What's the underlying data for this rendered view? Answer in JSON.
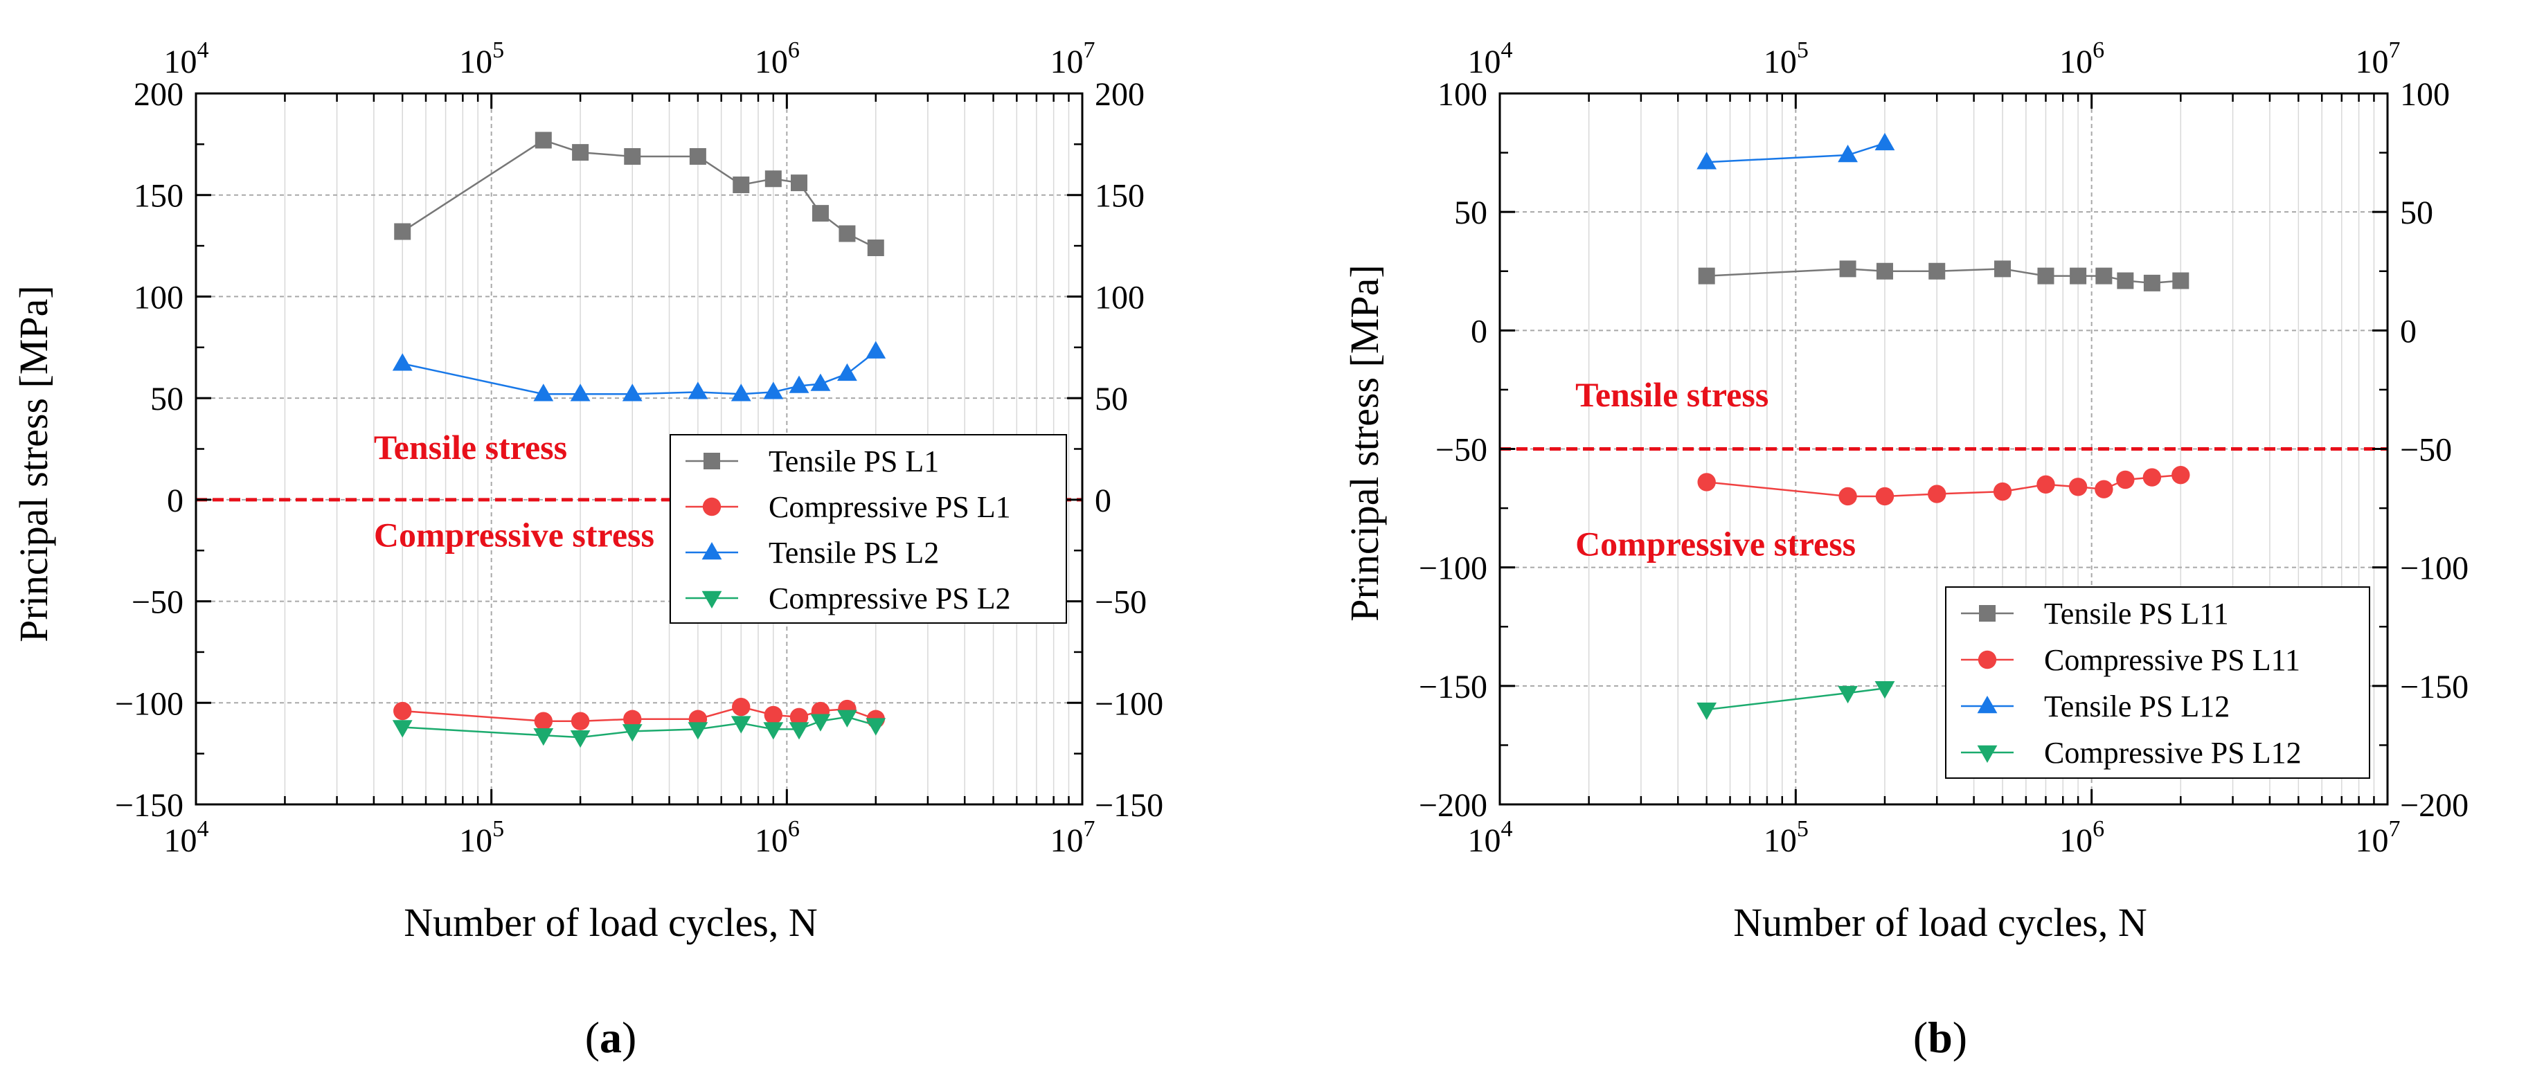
{
  "figure": {
    "labels": [
      {
        "open": "(",
        "letter": "a",
        "close": ")"
      },
      {
        "open": "(",
        "letter": "b",
        "close": ")"
      }
    ]
  },
  "colors": {
    "tensile_l1": "#777777",
    "compressive_l1": "#f04141",
    "tensile_l2": "#1878e8",
    "compressive_l2": "#1bab6e",
    "reference_line": "#e8101a",
    "annotation": "#e8101a"
  },
  "chart_data": [
    {
      "type": "scatter",
      "panel": "a",
      "title": "",
      "xlabel": "Number of load cycles, N",
      "ylabel": "Principal stress [MPa]",
      "x_scale": "log",
      "xlim": [
        10000,
        10000000
      ],
      "ylim": [
        -150,
        200
      ],
      "y_ticks": [
        -150,
        -100,
        -50,
        0,
        50,
        100,
        150,
        200
      ],
      "y_tick_labels": [
        "−150",
        "−100",
        "−50",
        "0",
        "50",
        "100",
        "150",
        "200"
      ],
      "x_ticks": [
        {
          "value": 10000,
          "base": "10",
          "exp": "4"
        },
        {
          "value": 100000,
          "base": "10",
          "exp": "5"
        },
        {
          "value": 1000000,
          "base": "10",
          "exp": "6"
        },
        {
          "value": 10000000,
          "base": "10",
          "exp": "7"
        }
      ],
      "grid": true,
      "legend_position": "center-right",
      "reference_line": {
        "y": 0,
        "style": "dashed"
      },
      "annotations": [
        {
          "text": "Tensile stress",
          "x": 40000,
          "y": 20
        },
        {
          "text": "Compressive stress",
          "x": 40000,
          "y": -23
        }
      ],
      "series": [
        {
          "name": "Tensile PS L1",
          "marker": "square",
          "color_key": "tensile_l1",
          "x": [
            50000,
            150000,
            200000,
            300000,
            500000,
            700000,
            900000,
            1100000,
            1300000,
            1600000,
            2000000
          ],
          "y": [
            132,
            177,
            171,
            169,
            169,
            155,
            158,
            156,
            141,
            131,
            124
          ]
        },
        {
          "name": "Compressive PS L1",
          "marker": "circle",
          "color_key": "compressive_l1",
          "x": [
            50000,
            150000,
            200000,
            300000,
            500000,
            700000,
            900000,
            1100000,
            1300000,
            1600000,
            2000000
          ],
          "y": [
            -104,
            -109,
            -109,
            -108,
            -108,
            -102,
            -106,
            -107,
            -104,
            -103,
            -108
          ]
        },
        {
          "name": "Tensile PS L2",
          "marker": "triangle-up",
          "color_key": "tensile_l2",
          "x": [
            50000,
            150000,
            200000,
            300000,
            500000,
            700000,
            900000,
            1100000,
            1300000,
            1600000,
            2000000
          ],
          "y": [
            67,
            52,
            52,
            52,
            53,
            52,
            53,
            56,
            57,
            62,
            73
          ]
        },
        {
          "name": "Compressive PS L2",
          "marker": "triangle-down",
          "color_key": "compressive_l2",
          "x": [
            50000,
            150000,
            200000,
            300000,
            500000,
            700000,
            900000,
            1100000,
            1300000,
            1600000,
            2000000
          ],
          "y": [
            -112,
            -116,
            -117,
            -114,
            -113,
            -110,
            -113,
            -113,
            -109,
            -107,
            -111
          ]
        }
      ]
    },
    {
      "type": "scatter",
      "panel": "b",
      "title": "",
      "xlabel": "Number of load cycles, N",
      "ylabel": "Principal stress [MPa]",
      "x_scale": "log",
      "xlim": [
        10000,
        10000000
      ],
      "ylim": [
        -200,
        100
      ],
      "y_ticks": [
        -200,
        -150,
        -100,
        -50,
        0,
        50,
        100
      ],
      "y_tick_labels": [
        "−200",
        "−150",
        "−100",
        "−50",
        "0",
        "50",
        "100"
      ],
      "x_ticks": [
        {
          "value": 10000,
          "base": "10",
          "exp": "4"
        },
        {
          "value": 100000,
          "base": "10",
          "exp": "5"
        },
        {
          "value": 1000000,
          "base": "10",
          "exp": "6"
        },
        {
          "value": 10000000,
          "base": "10",
          "exp": "7"
        }
      ],
      "grid": true,
      "legend_position": "bottom-right",
      "reference_line": {
        "y": -50,
        "style": "dashed"
      },
      "annotations": [
        {
          "text": "Tensile stress",
          "x": 18000,
          "y": -32
        },
        {
          "text": "Compressive stress",
          "x": 18000,
          "y": -95
        }
      ],
      "series": [
        {
          "name": "Tensile PS L11",
          "marker": "square",
          "color_key": "tensile_l1",
          "x": [
            50000,
            150000,
            200000,
            300000,
            500000,
            700000,
            900000,
            1100000,
            1300000,
            1600000,
            2000000
          ],
          "y": [
            23,
            26,
            25,
            25,
            26,
            23,
            23,
            23,
            21,
            20,
            21
          ]
        },
        {
          "name": "Compressive PS L11",
          "marker": "circle",
          "color_key": "compressive_l1",
          "x": [
            50000,
            150000,
            200000,
            300000,
            500000,
            700000,
            900000,
            1100000,
            1300000,
            1600000,
            2000000
          ],
          "y": [
            -64,
            -70,
            -70,
            -69,
            -68,
            -65,
            -66,
            -67,
            -63,
            -62,
            -61
          ]
        },
        {
          "name": "Tensile PS L12",
          "marker": "triangle-up",
          "color_key": "tensile_l2",
          "x": [
            50000,
            150000,
            200000
          ],
          "y": [
            71,
            74,
            79
          ]
        },
        {
          "name": "Compressive PS L12",
          "marker": "triangle-down",
          "color_key": "compressive_l2",
          "x": [
            50000,
            150000,
            200000
          ],
          "y": [
            -160,
            -153,
            -151
          ]
        }
      ]
    }
  ]
}
